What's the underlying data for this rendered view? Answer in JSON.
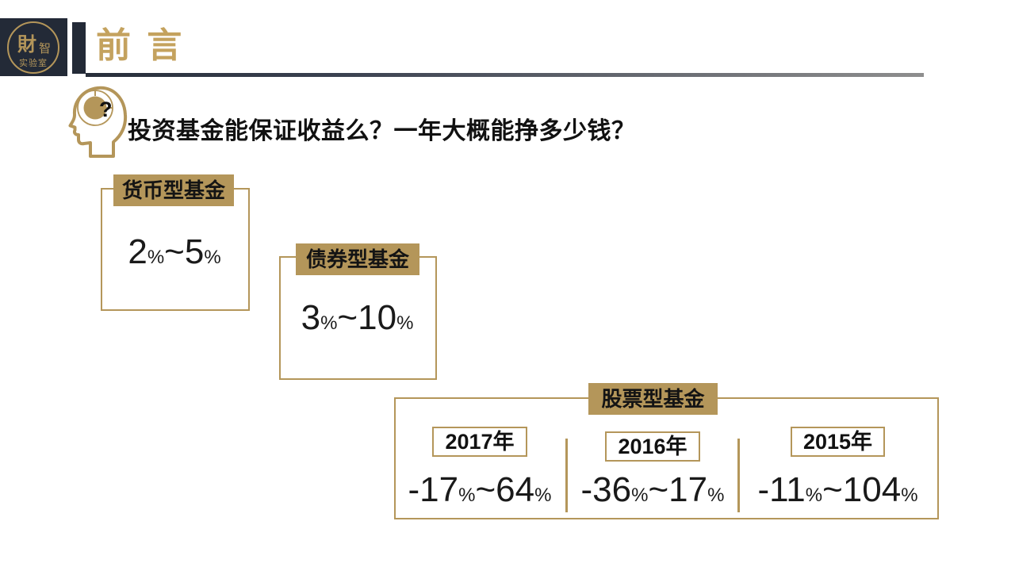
{
  "slide": {
    "header": {
      "logo": {
        "seal_main": "財",
        "seal_side": "智",
        "seal_bottom": "实验室"
      },
      "title": "前 言"
    },
    "question": {
      "mark": "?",
      "text": "投资基金能保证收益么？一年大概能挣多少钱？"
    },
    "fund_cards": [
      {
        "label": "货币型基金",
        "value": "2%~5%"
      },
      {
        "label": "债券型基金",
        "value": "3%~10%"
      },
      {
        "label": "股票型基金",
        "years": [
          {
            "year": "2017年",
            "value": "-17%~64%"
          },
          {
            "year": "2016年",
            "value": "-36%~17%"
          },
          {
            "year": "2015年",
            "value": "-11%~104%"
          }
        ]
      }
    ],
    "colors": {
      "gold": "#B4965A",
      "title_gold": "#C4A25E",
      "dark_navy": "#232A37",
      "line_gray": "#8E8E8E",
      "text_black": "#111111"
    }
  }
}
